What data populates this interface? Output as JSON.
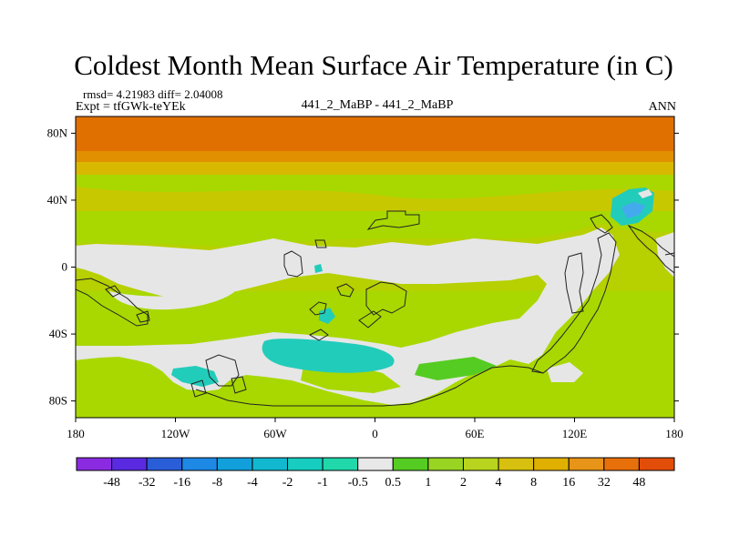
{
  "title": "Coldest Month Mean Surface Air Temperature (in C)",
  "stats_text": "rmsd= 4.21983 diff= 2.04008",
  "expt_text": "Expt = tfGWk-teYEk",
  "comparison_text": "441_2_MaBP - 441_2_MaBP",
  "season_text": "ANN",
  "colors": {
    "ocean_base": "#a8d800",
    "warm_band": "#d8b800",
    "polar_band": "#e07000",
    "neutral": "#e6e6e6",
    "cyan": "#22ccbb",
    "blue": "#44aaee",
    "green": "#55cc22"
  },
  "axes": {
    "lat_labels": [
      "80N",
      "40N",
      "0",
      "40S",
      "80S"
    ],
    "lat_values": [
      80,
      40,
      0,
      -40,
      -80
    ],
    "lon_labels": [
      "180",
      "120W",
      "60W",
      "0",
      "60E",
      "120E",
      "180"
    ],
    "lon_values": [
      -180,
      -120,
      -60,
      0,
      60,
      120,
      180
    ]
  },
  "colorbar": {
    "colors": [
      "#8a2be2",
      "#5a2ae0",
      "#2a5ed8",
      "#1e88e5",
      "#12a0dc",
      "#12b8d0",
      "#16cdbf",
      "#20d8aa",
      "#e8e8e8",
      "#55cc22",
      "#99d422",
      "#b8d41e",
      "#d8c010",
      "#e0b000",
      "#e89418",
      "#e8700a",
      "#e24d0a"
    ],
    "labels": [
      "-48",
      "-32",
      "-16",
      "-8",
      "-4",
      "-2",
      "-1",
      "-0.5",
      "0.5",
      "1",
      "2",
      "4",
      "8",
      "16",
      "32",
      "48"
    ]
  }
}
